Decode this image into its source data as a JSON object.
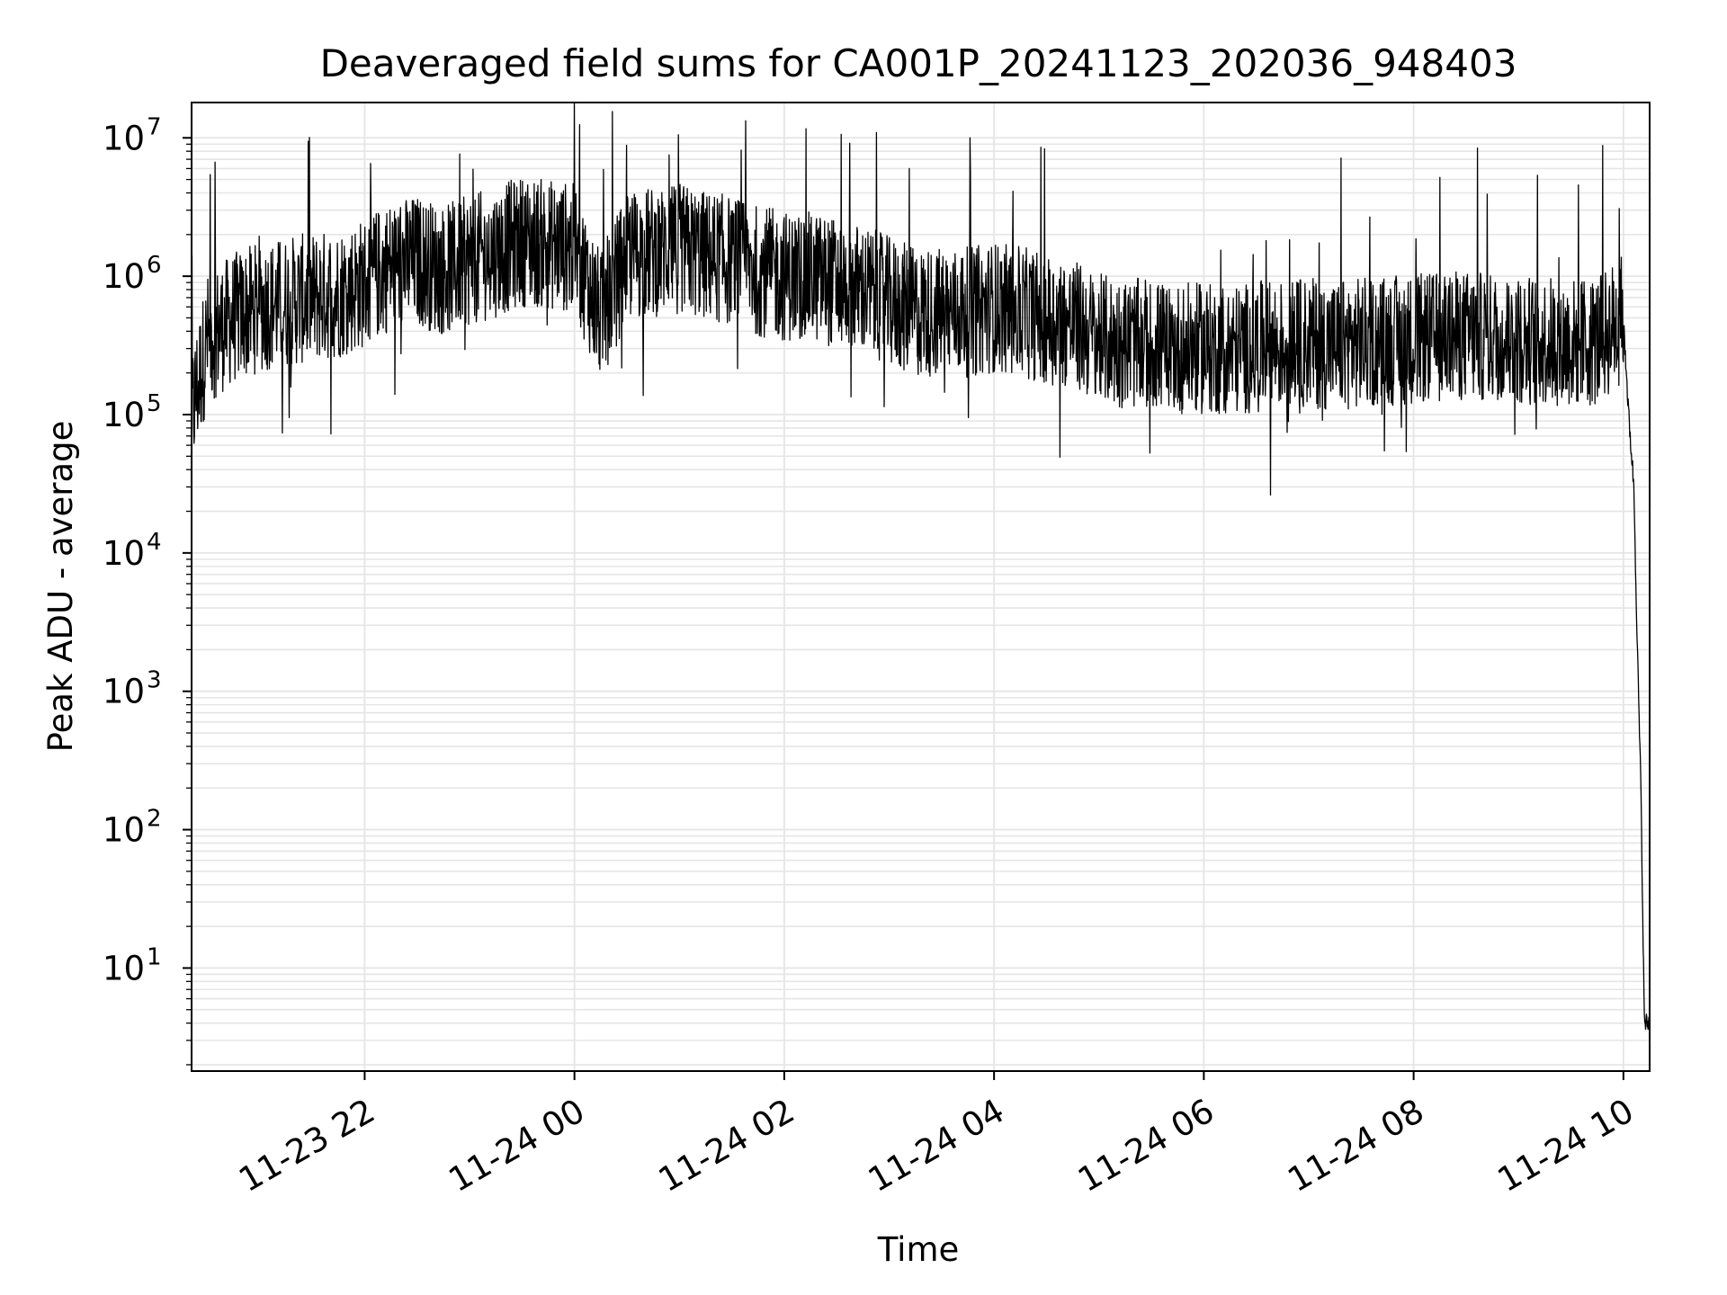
{
  "chart_data": {
    "type": "line",
    "title": "Deaveraged field sums for CA001P_20241123_202036_948403",
    "xlabel": "Time",
    "ylabel": "Peak ADU - average",
    "x_ticks": [
      "11-23 22",
      "11-24 00",
      "11-24 02",
      "11-24 04",
      "11-24 06",
      "11-24 08",
      "11-24 10"
    ],
    "y_ticks": [
      {
        "base": "10",
        "exp": "1"
      },
      {
        "base": "10",
        "exp": "2"
      },
      {
        "base": "10",
        "exp": "3"
      },
      {
        "base": "10",
        "exp": "4"
      },
      {
        "base": "10",
        "exp": "5"
      },
      {
        "base": "10",
        "exp": "6"
      },
      {
        "base": "10",
        "exp": "7"
      }
    ],
    "xlim": [
      "2024-11-23 20:21",
      "2024-11-24 10:15"
    ],
    "ylim": [
      1.8,
      18000000
    ],
    "yscale": "log",
    "grid": true,
    "line_color": "#000000",
    "grid_color": "#e5e5e5",
    "series": [
      {
        "x": [
          "2024-11-23 20:21",
          "2024-11-23 20:30",
          "2024-11-23 20:45",
          "2024-11-23 21:00",
          "2024-11-23 21:15",
          "2024-11-23 21:30",
          "2024-11-23 21:45",
          "2024-11-23 22:00",
          "2024-11-23 22:15",
          "2024-11-23 22:30",
          "2024-11-23 22:45",
          "2024-11-23 23:00",
          "2024-11-23 23:15",
          "2024-11-23 23:30",
          "2024-11-23 23:45",
          "2024-11-24 00:00",
          "2024-11-24 00:15",
          "2024-11-24 00:30",
          "2024-11-24 00:45",
          "2024-11-24 01:00",
          "2024-11-24 01:15",
          "2024-11-24 01:30",
          "2024-11-24 01:45",
          "2024-11-24 02:00",
          "2024-11-24 02:15",
          "2024-11-24 02:30",
          "2024-11-24 02:45",
          "2024-11-24 03:00",
          "2024-11-24 03:15",
          "2024-11-24 03:30",
          "2024-11-24 03:45",
          "2024-11-24 04:00",
          "2024-11-24 04:15",
          "2024-11-24 04:30",
          "2024-11-24 04:45",
          "2024-11-24 05:00",
          "2024-11-24 05:15",
          "2024-11-24 05:30",
          "2024-11-24 05:45",
          "2024-11-24 06:00",
          "2024-11-24 06:15",
          "2024-11-24 06:30",
          "2024-11-24 06:45",
          "2024-11-24 07:00",
          "2024-11-24 07:15",
          "2024-11-24 07:30",
          "2024-11-24 07:45",
          "2024-11-24 08:00",
          "2024-11-24 08:15",
          "2024-11-24 08:30",
          "2024-11-24 08:45",
          "2024-11-24 09:00",
          "2024-11-24 09:15",
          "2024-11-24 09:30",
          "2024-11-24 09:45",
          "2024-11-24 10:00",
          "2024-11-24 10:03",
          "2024-11-24 10:06",
          "2024-11-24 10:08",
          "2024-11-24 10:10",
          "2024-11-24 10:12",
          "2024-11-24 10:14",
          "2024-11-24 10:15"
        ],
        "y": [
          100000,
          350000,
          500000,
          600000,
          650000,
          700000,
          750000,
          900000,
          1200000,
          1300000,
          1100000,
          1300000,
          1500000,
          1800000,
          1700000,
          1600000,
          500000,
          1400000,
          1500000,
          1600000,
          1400000,
          1300000,
          1100000,
          1000000,
          1000000,
          900000,
          800000,
          650000,
          550000,
          550000,
          550000,
          600000,
          550000,
          500000,
          450000,
          350000,
          330000,
          320000,
          300000,
          300000,
          290000,
          310000,
          320000,
          330000,
          320000,
          330000,
          340000,
          350000,
          360000,
          370000,
          360000,
          350000,
          340000,
          330000,
          340000,
          500000,
          100000,
          30000,
          2000,
          200,
          4,
          4,
          4
        ]
      }
    ]
  }
}
